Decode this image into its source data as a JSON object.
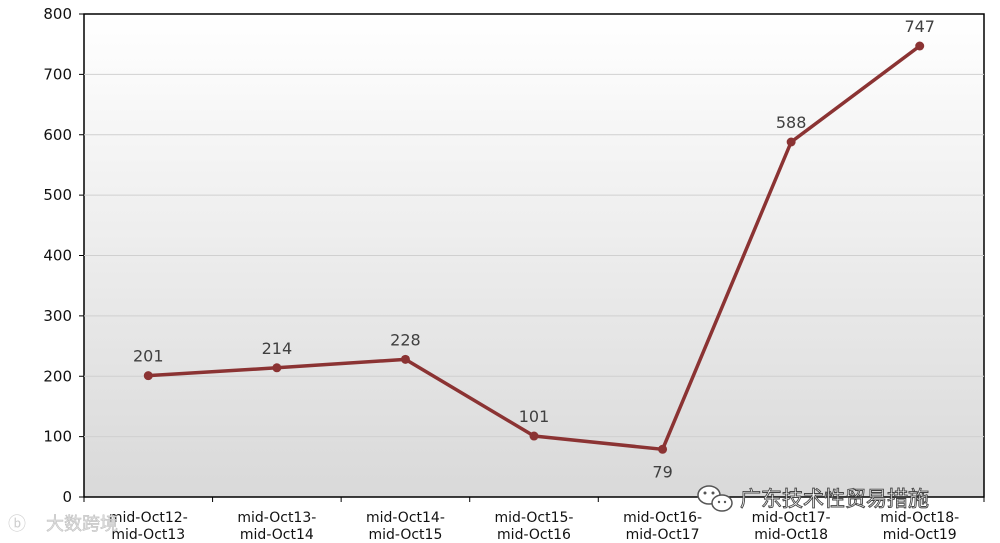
{
  "chart_data": {
    "type": "line",
    "title": "",
    "xlabel": "",
    "ylabel": "",
    "ylim": [
      0,
      800
    ],
    "yticks": [
      0,
      100,
      200,
      300,
      400,
      500,
      600,
      700,
      800
    ],
    "grid": true,
    "categories": [
      [
        "mid-Oct12-",
        "mid-Oct13"
      ],
      [
        "mid-Oct13-",
        "mid-Oct14"
      ],
      [
        "mid-Oct14-",
        "mid-Oct15"
      ],
      [
        "mid-Oct15-",
        "mid-Oct16"
      ],
      [
        "mid-Oct16-",
        "mid-Oct17"
      ],
      [
        "mid-Oct17-",
        "mid-Oct18"
      ],
      [
        "mid-Oct18-",
        "mid-Oct19"
      ]
    ],
    "series": [
      {
        "values": [
          201,
          214,
          228,
          101,
          79,
          588,
          747
        ],
        "color": "#8B3333"
      }
    ]
  },
  "watermarks": {
    "left_text": "大数跨境",
    "right_text": "广东技术性贸易措施"
  }
}
